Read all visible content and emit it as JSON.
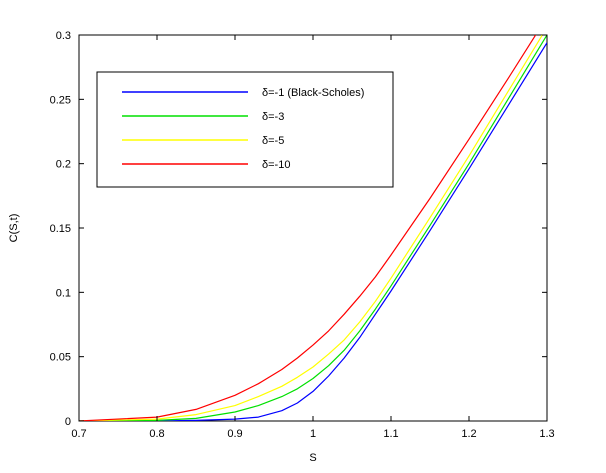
{
  "chart_data": {
    "type": "line",
    "title": "",
    "xlabel": "S",
    "ylabel": "C(S,t)",
    "xlim": [
      0.7,
      1.3
    ],
    "ylim": [
      0,
      0.3
    ],
    "xticks": [
      "0.7",
      "0.8",
      "0.9",
      "1",
      "1.1",
      "1.2",
      "1.3"
    ],
    "yticks": [
      "0",
      "0.05",
      "0.1",
      "0.15",
      "0.2",
      "0.25",
      "0.3"
    ],
    "grid": false,
    "legend_position": "top-left",
    "series": [
      {
        "name": "δ=-1 (Black-Scholes)",
        "color": "#0000ff",
        "x": [
          0.7,
          0.8,
          0.85,
          0.9,
          0.93,
          0.96,
          0.98,
          1.0,
          1.02,
          1.04,
          1.06,
          1.08,
          1.1,
          1.15,
          1.2,
          1.25,
          1.3
        ],
        "y": [
          0.0,
          0.0,
          0.0005,
          0.0015,
          0.003,
          0.008,
          0.014,
          0.023,
          0.035,
          0.049,
          0.065,
          0.083,
          0.101,
          0.148,
          0.196,
          0.245,
          0.294
        ]
      },
      {
        "name": "δ=-3",
        "color": "#00e000",
        "x": [
          0.7,
          0.8,
          0.85,
          0.9,
          0.93,
          0.96,
          0.98,
          1.0,
          1.02,
          1.04,
          1.06,
          1.08,
          1.1,
          1.15,
          1.2,
          1.25,
          1.3
        ],
        "y": [
          0.0,
          0.0005,
          0.002,
          0.007,
          0.012,
          0.019,
          0.025,
          0.033,
          0.043,
          0.055,
          0.07,
          0.087,
          0.105,
          0.152,
          0.2,
          0.25,
          0.3
        ]
      },
      {
        "name": "δ=-5",
        "color": "#ffff00",
        "x": [
          0.7,
          0.8,
          0.85,
          0.9,
          0.93,
          0.96,
          0.98,
          1.0,
          1.02,
          1.04,
          1.06,
          1.08,
          1.1,
          1.15,
          1.2,
          1.25,
          1.3
        ],
        "y": [
          0.0,
          0.0015,
          0.005,
          0.012,
          0.019,
          0.027,
          0.034,
          0.042,
          0.052,
          0.063,
          0.077,
          0.093,
          0.111,
          0.158,
          0.206,
          0.256,
          0.306
        ]
      },
      {
        "name": "δ=-10",
        "color": "#ff0000",
        "x": [
          0.7,
          0.8,
          0.85,
          0.9,
          0.93,
          0.96,
          0.98,
          1.0,
          1.02,
          1.04,
          1.06,
          1.08,
          1.1,
          1.15,
          1.2,
          1.25,
          1.3
        ],
        "y": [
          0.0,
          0.003,
          0.009,
          0.02,
          0.029,
          0.04,
          0.049,
          0.059,
          0.07,
          0.083,
          0.097,
          0.112,
          0.129,
          0.173,
          0.219,
          0.266,
          0.314
        ]
      }
    ]
  }
}
